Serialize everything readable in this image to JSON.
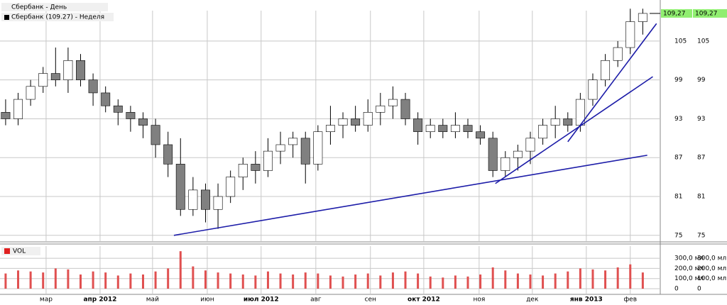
{
  "chart_data": [
    {
      "type": "candlestick",
      "title": "Сбербанк - День",
      "subtitle": "Сбербанк (109.27) - Неделя",
      "x": [
        0,
        1,
        2,
        3,
        4,
        5,
        6,
        7,
        8,
        9,
        10,
        11,
        12,
        13,
        14,
        15,
        16,
        17,
        18,
        19,
        20,
        21,
        22,
        23,
        24,
        25,
        26,
        27,
        28,
        29,
        30,
        31,
        32,
        33,
        34,
        35,
        36,
        37,
        38,
        39,
        40,
        41,
        42,
        43,
        44,
        45,
        46,
        47,
        48,
        49,
        50,
        51
      ],
      "open": [
        94,
        93,
        96,
        98,
        100,
        99,
        102,
        99,
        97,
        95,
        94,
        93,
        92,
        89,
        86,
        79,
        82,
        79,
        81,
        84,
        86,
        85,
        88,
        89,
        90,
        86,
        91,
        92,
        93,
        92,
        94,
        95,
        96,
        93,
        91,
        92,
        91,
        92,
        91,
        90,
        85,
        87,
        88,
        90,
        92,
        93,
        92,
        96,
        99,
        102,
        104,
        108
      ],
      "high": [
        96,
        97,
        99,
        101,
        104,
        104,
        103,
        100,
        98,
        96,
        95,
        94,
        93,
        91,
        90,
        84,
        83,
        83,
        85,
        87,
        88,
        90,
        91,
        91,
        91,
        92,
        95,
        94,
        95,
        96,
        97,
        98,
        97,
        94,
        93,
        93,
        94,
        93,
        92,
        91,
        88,
        89,
        91,
        93,
        95,
        94,
        97,
        100,
        103,
        105,
        110,
        110
      ],
      "low": [
        92,
        92,
        95,
        97,
        98,
        97,
        98,
        95,
        94,
        92,
        91,
        90,
        87,
        84,
        78,
        78,
        77,
        76,
        80,
        82,
        83,
        84,
        86,
        87,
        83,
        85,
        89,
        90,
        91,
        91,
        92,
        93,
        92,
        89,
        90,
        90,
        90,
        90,
        89,
        84,
        84,
        85,
        86,
        89,
        90,
        91,
        91,
        95,
        98,
        101,
        103,
        106
      ],
      "close": [
        93,
        96,
        98,
        100,
        99,
        102,
        99,
        97,
        95,
        94,
        93,
        92,
        89,
        86,
        79,
        82,
        79,
        81,
        84,
        86,
        85,
        88,
        89,
        90,
        86,
        91,
        92,
        93,
        92,
        94,
        95,
        96,
        93,
        91,
        92,
        91,
        92,
        91,
        90,
        85,
        87,
        88,
        90,
        92,
        93,
        92,
        96,
        99,
        102,
        104,
        108,
        109.27
      ],
      "up_color": "#ffffff",
      "down_color": "#808080",
      "line_color": "#000000",
      "xlim": [
        -0.45,
        52.4
      ],
      "xticks": [
        {
          "value": 3.24,
          "label": "мар"
        },
        {
          "value": 7.56,
          "label": "апр 2012"
        },
        {
          "value": 11.76,
          "label": "май"
        },
        {
          "value": 16.14,
          "label": "июн"
        },
        {
          "value": 20.45,
          "label": "июл 2012"
        },
        {
          "value": 24.83,
          "label": "авг"
        },
        {
          "value": 29.2,
          "label": "сен"
        },
        {
          "value": 33.47,
          "label": "окт 2012"
        },
        {
          "value": 37.9,
          "label": "ноя"
        },
        {
          "value": 42.16,
          "label": "дек"
        },
        {
          "value": 46.48,
          "label": "янв 2013"
        },
        {
          "value": 50.0,
          "label": "фев"
        }
      ],
      "ylim": [
        74.1,
        109.7
      ],
      "yticks": [
        75,
        81,
        87,
        93,
        99,
        105
      ],
      "last_price": {
        "value": 109.27,
        "label": "109,27"
      },
      "trend_lines": [
        {
          "x": [
            13.47,
            51.36
          ],
          "y": [
            75,
            87.37
          ]
        },
        {
          "x": [
            39.2,
            51.8
          ],
          "y": [
            83.0,
            99.5
          ]
        },
        {
          "x": [
            45,
            52.1
          ],
          "y": [
            89.45,
            107.7
          ]
        }
      ],
      "trend_color": "#1c1ca8",
      "grid": true
    },
    {
      "type": "bar",
      "title": "VOL",
      "x": [
        0,
        1,
        2,
        3,
        4,
        5,
        6,
        7,
        8,
        9,
        10,
        11,
        12,
        13,
        14,
        15,
        16,
        17,
        18,
        19,
        20,
        21,
        22,
        23,
        24,
        25,
        26,
        27,
        28,
        29,
        30,
        31,
        32,
        33,
        34,
        35,
        36,
        37,
        38,
        39,
        40,
        41,
        42,
        43,
        44,
        45,
        46,
        47,
        48,
        49,
        50,
        51
      ],
      "values": [
        150,
        180,
        170,
        160,
        200,
        190,
        140,
        170,
        160,
        130,
        150,
        140,
        170,
        200,
        370,
        220,
        180,
        160,
        150,
        140,
        130,
        170,
        150,
        140,
        160,
        150,
        130,
        120,
        140,
        150,
        130,
        160,
        170,
        150,
        120,
        110,
        130,
        120,
        140,
        210,
        180,
        150,
        140,
        130,
        150,
        170,
        200,
        190,
        180,
        210,
        240,
        160
      ],
      "color": "#e05050",
      "xlim": [
        -0.45,
        52.4
      ],
      "ylim": [
        -56,
        420
      ],
      "yticks": [
        {
          "value": 300,
          "label": "300,0 мл"
        },
        {
          "value": 200,
          "label": "200,0 мл"
        },
        {
          "value": 100,
          "label": "100,0 мл"
        },
        0
      ],
      "grid": true
    }
  ]
}
